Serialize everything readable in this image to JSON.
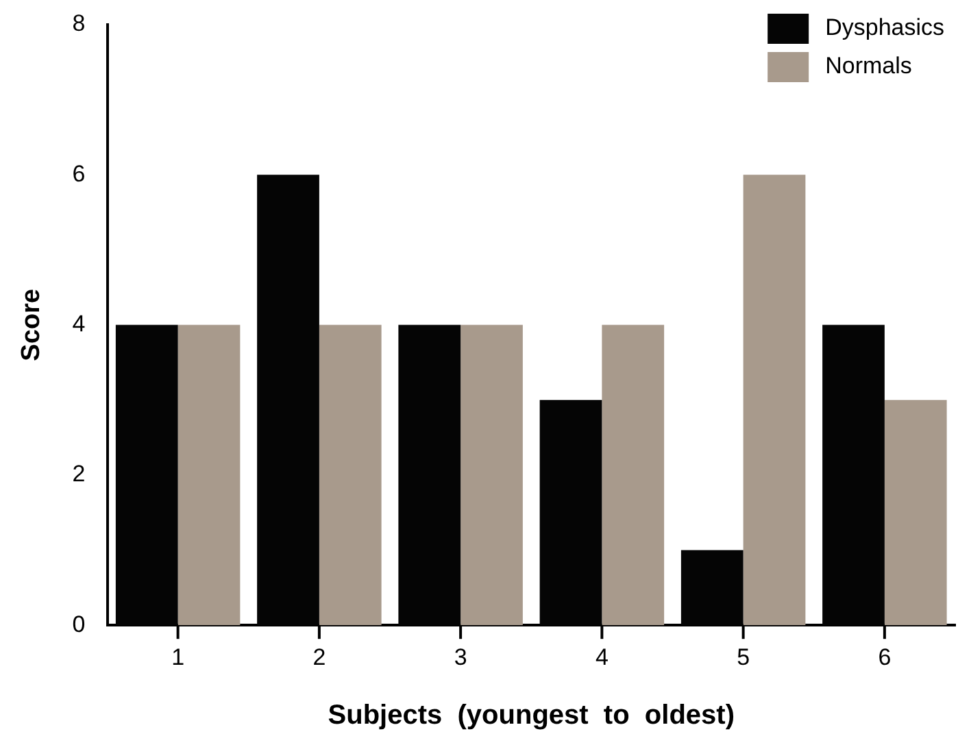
{
  "chart_data": {
    "type": "bar",
    "xlabel": "Subjects  (youngest  to  oldest)",
    "ylabel": "Score",
    "categories": [
      "1",
      "2",
      "3",
      "4",
      "5",
      "6"
    ],
    "series": [
      {
        "name": "Dysphasics",
        "color": "#050505",
        "values": [
          4,
          6,
          4,
          3,
          1,
          4
        ]
      },
      {
        "name": "Normals",
        "color": "#a89a8c",
        "values": [
          4,
          4,
          4,
          4,
          6,
          3
        ]
      }
    ],
    "ylim": [
      0,
      8
    ],
    "yticks": [
      0,
      2,
      4,
      6,
      8
    ],
    "grid": false,
    "legend": "top right"
  }
}
